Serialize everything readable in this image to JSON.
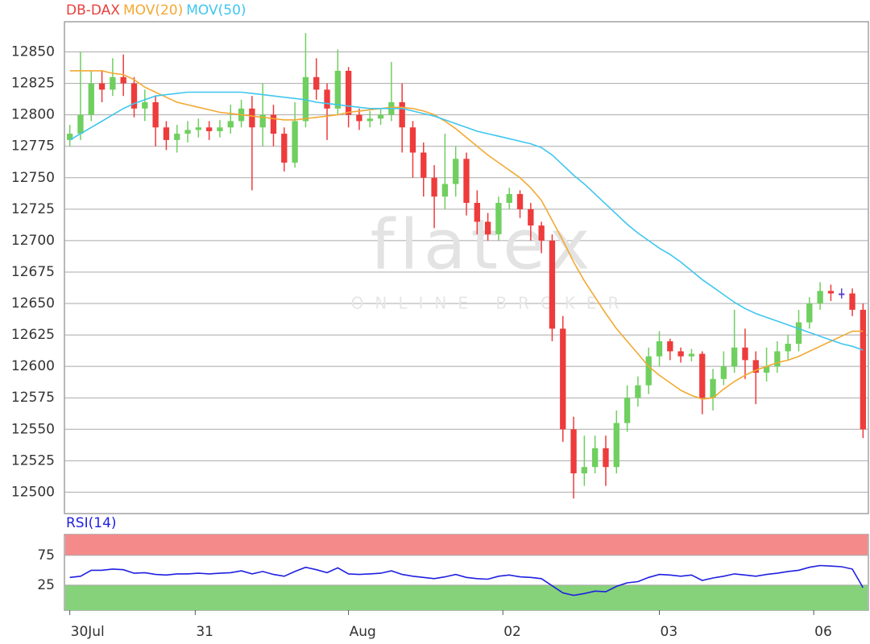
{
  "chart_data": [
    {
      "type": "candlestick",
      "watermark": {
        "text": "flatex",
        "subtext": "ONLINE BROKER"
      },
      "xlim": [
        -0.5,
        74.5
      ],
      "ylim": [
        12483,
        12874
      ],
      "yticks": [
        12500,
        12525,
        12550,
        12575,
        12600,
        12625,
        12650,
        12675,
        12700,
        12725,
        12750,
        12775,
        12800,
        12825,
        12850
      ],
      "grid": true,
      "series": [
        {
          "name": "DB-DAX",
          "color": "#e8413c",
          "up_color": "#6fcf5f",
          "down_color": "#ee3b3b",
          "flat_color": "#5a3fd0",
          "open": [
            12780,
            12785,
            12800,
            12825,
            12820,
            12830,
            12825,
            12805,
            12810,
            12790,
            12780,
            12785,
            12788,
            12790,
            12787,
            12790,
            12795,
            12805,
            12790,
            12800,
            12785,
            12762,
            12795,
            12830,
            12820,
            12805,
            12835,
            12800,
            12795,
            12797,
            12800,
            12810,
            12790,
            12770,
            12750,
            12735,
            12745,
            12765,
            12730,
            12715,
            12705,
            12730,
            12737,
            12725,
            12712,
            12700,
            12630,
            12550,
            12515,
            12520,
            12535,
            12520,
            12555,
            12575,
            12585,
            12608,
            12620,
            12612,
            12608,
            12610,
            12575,
            12590,
            12600,
            12615,
            12605,
            12595,
            12600,
            12612,
            12618,
            12635,
            12650,
            12660,
            12658,
            12658,
            12645
          ],
          "high": [
            12792,
            12850,
            12835,
            12835,
            12845,
            12848,
            12830,
            12820,
            12815,
            12795,
            12792,
            12795,
            12797,
            12795,
            12796,
            12808,
            12812,
            12815,
            12825,
            12808,
            12790,
            12810,
            12865,
            12845,
            12825,
            12852,
            12838,
            12805,
            12803,
            12805,
            12842,
            12825,
            12795,
            12778,
            12760,
            12785,
            12775,
            12770,
            12740,
            12722,
            12735,
            12742,
            12740,
            12730,
            12715,
            12705,
            12640,
            12560,
            12545,
            12545,
            12545,
            12565,
            12585,
            12592,
            12615,
            12628,
            12622,
            12615,
            12614,
            12612,
            12598,
            12612,
            12645,
            12630,
            12612,
            12615,
            12620,
            12625,
            12645,
            12655,
            12667,
            12665,
            12662,
            12662,
            12650
          ],
          "low": [
            12775,
            12780,
            12795,
            12810,
            12815,
            12815,
            12798,
            12795,
            12775,
            12772,
            12770,
            12778,
            12782,
            12780,
            12782,
            12785,
            12790,
            12740,
            12775,
            12775,
            12755,
            12758,
            12790,
            12812,
            12780,
            12800,
            12790,
            12788,
            12790,
            12792,
            12795,
            12770,
            12750,
            12735,
            12710,
            12725,
            12735,
            12720,
            12705,
            12700,
            12700,
            12725,
            12718,
            12700,
            12690,
            12620,
            12540,
            12495,
            12505,
            12515,
            12505,
            12515,
            12548,
            12568,
            12578,
            12600,
            12605,
            12603,
            12604,
            12562,
            12565,
            12585,
            12595,
            12590,
            12570,
            12588,
            12595,
            12605,
            12612,
            12630,
            12645,
            12652,
            12654,
            12640,
            12543
          ],
          "close": [
            12785,
            12800,
            12825,
            12820,
            12830,
            12825,
            12805,
            12810,
            12790,
            12780,
            12785,
            12788,
            12790,
            12787,
            12790,
            12795,
            12805,
            12790,
            12800,
            12785,
            12762,
            12795,
            12830,
            12820,
            12805,
            12835,
            12800,
            12795,
            12797,
            12800,
            12810,
            12790,
            12770,
            12750,
            12735,
            12745,
            12765,
            12730,
            12715,
            12705,
            12730,
            12737,
            12725,
            12712,
            12700,
            12630,
            12550,
            12515,
            12520,
            12535,
            12520,
            12555,
            12575,
            12585,
            12608,
            12620,
            12612,
            12608,
            12610,
            12575,
            12590,
            12600,
            12615,
            12605,
            12595,
            12600,
            12612,
            12618,
            12635,
            12650,
            12660,
            12658,
            12658,
            12645,
            12550
          ]
        },
        {
          "name": "MOV(20)",
          "color": "#f2a933",
          "values": [
            12835,
            12835,
            12835,
            12835,
            12833,
            12832,
            12828,
            12822,
            12818,
            12814,
            12810,
            12808,
            12806,
            12804,
            12802,
            12801,
            12800,
            12799,
            12798,
            12797,
            12796,
            12796,
            12797,
            12798,
            12799,
            12800,
            12802,
            12803,
            12804,
            12805,
            12806,
            12806,
            12805,
            12803,
            12800,
            12795,
            12789,
            12782,
            12775,
            12768,
            12762,
            12756,
            12750,
            12742,
            12732,
            12716,
            12700,
            12683,
            12668,
            12655,
            12642,
            12630,
            12620,
            12610,
            12600,
            12593,
            12587,
            12581,
            12577,
            12574,
            12575,
            12582,
            12588,
            12593,
            12597,
            12600,
            12603,
            12605,
            12608,
            12612,
            12616,
            12620,
            12624,
            12628,
            12628
          ]
        },
        {
          "name": "MOV(50)",
          "color": "#3fc6ef",
          "values": [
            12780,
            12785,
            12790,
            12795,
            12800,
            12805,
            12809,
            12812,
            12815,
            12816,
            12817,
            12818,
            12818,
            12818,
            12818,
            12818,
            12818,
            12817,
            12816,
            12815,
            12814,
            12813,
            12812,
            12810,
            12809,
            12808,
            12807,
            12806,
            12805,
            12805,
            12805,
            12805,
            12803,
            12801,
            12799,
            12796,
            12793,
            12790,
            12787,
            12785,
            12783,
            12781,
            12779,
            12777,
            12774,
            12768,
            12760,
            12752,
            12745,
            12737,
            12729,
            12721,
            12713,
            12706,
            12700,
            12694,
            12689,
            12683,
            12676,
            12669,
            12663,
            12657,
            12651,
            12646,
            12642,
            12639,
            12636,
            12633,
            12630,
            12627,
            12624,
            12621,
            12618,
            12616,
            12613
          ]
        }
      ]
    },
    {
      "type": "line",
      "xlim": [
        -0.5,
        74.5
      ],
      "xticks": [
        {
          "value": 0,
          "label": "30Jul"
        },
        {
          "value": 11.7,
          "label": "31"
        },
        {
          "value": 26,
          "label": "Aug"
        },
        {
          "value": 40.4,
          "label": "02"
        },
        {
          "value": 55,
          "label": "03"
        },
        {
          "value": 69.4,
          "label": "06"
        }
      ],
      "ylim": [
        -17,
        110
      ],
      "yticks": [
        25,
        75
      ],
      "grid": true,
      "bands": [
        {
          "from": 75,
          "to": 110,
          "color": "#f58a8a"
        },
        {
          "from": -17,
          "to": 25,
          "color": "#85d27a"
        }
      ],
      "series": [
        {
          "name": "RSI(14)",
          "color": "#1f1fe0",
          "values": [
            38,
            40,
            50,
            50,
            52,
            51,
            45,
            46,
            43,
            42,
            44,
            44,
            45,
            44,
            45,
            46,
            49,
            44,
            48,
            43,
            40,
            48,
            55,
            51,
            46,
            54,
            44,
            43,
            44,
            45,
            49,
            43,
            40,
            38,
            36,
            39,
            43,
            38,
            36,
            35,
            40,
            42,
            39,
            38,
            36,
            24,
            12,
            8,
            11,
            15,
            14,
            23,
            29,
            31,
            38,
            43,
            42,
            40,
            42,
            33,
            37,
            40,
            44,
            42,
            40,
            43,
            45,
            48,
            50,
            55,
            58,
            57,
            56,
            52,
            21
          ]
        }
      ]
    }
  ]
}
